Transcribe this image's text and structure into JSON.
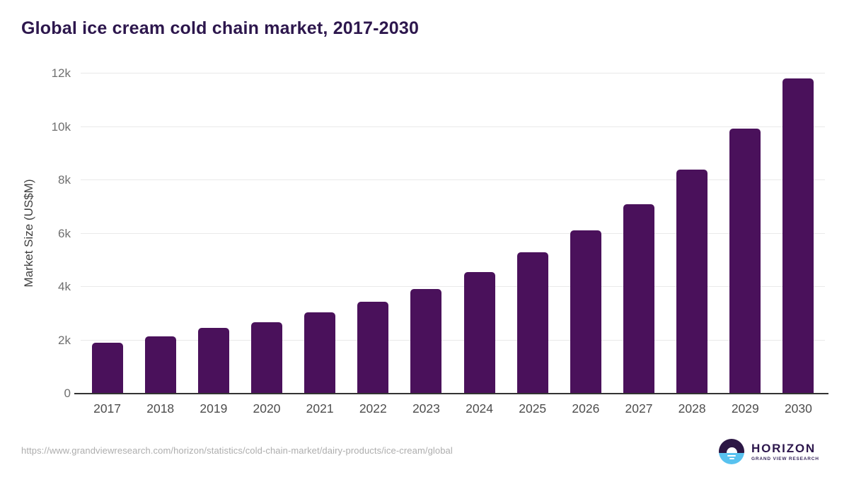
{
  "page": {
    "source_url": "https://www.grandviewresearch.com/horizon/statistics/cold-chain-market/dairy-products/ice-cream/global"
  },
  "logo": {
    "name": "HORIZON",
    "subtitle": "GRAND VIEW RESEARCH"
  },
  "colors": {
    "bar": "#4a115b",
    "title_color": "#2d174d",
    "grid": "#e9e9e9",
    "axis": "#333333",
    "tick": "#6f6f6f",
    "xlabel": "#4d4d4d",
    "ytitle": "#3f3f3f",
    "url": "#adadad",
    "logo_purple": "#2c1745",
    "logo_blue": "#58c2ef"
  },
  "chart_data": {
    "type": "bar",
    "title": "Global ice cream cold chain market, 2017-2030",
    "categories": [
      "2017",
      "2018",
      "2019",
      "2020",
      "2021",
      "2022",
      "2023",
      "2024",
      "2025",
      "2026",
      "2027",
      "2028",
      "2029",
      "2030"
    ],
    "values": [
      1900,
      2150,
      2460,
      2680,
      3040,
      3440,
      3930,
      4550,
      5290,
      6120,
      7100,
      8400,
      9940,
      11820
    ],
    "xlabel": "",
    "ylabel": "Market Size (US$M)",
    "ylim": [
      0,
      12000
    ],
    "yticks": [
      {
        "value": 0,
        "label": "0"
      },
      {
        "value": 2000,
        "label": "2k"
      },
      {
        "value": 4000,
        "label": "4k"
      },
      {
        "value": 6000,
        "label": "6k"
      },
      {
        "value": 8000,
        "label": "8k"
      },
      {
        "value": 10000,
        "label": "10k"
      },
      {
        "value": 12000,
        "label": "12k"
      }
    ],
    "grid": true,
    "legend": false,
    "bar_color": "#4a115b"
  }
}
